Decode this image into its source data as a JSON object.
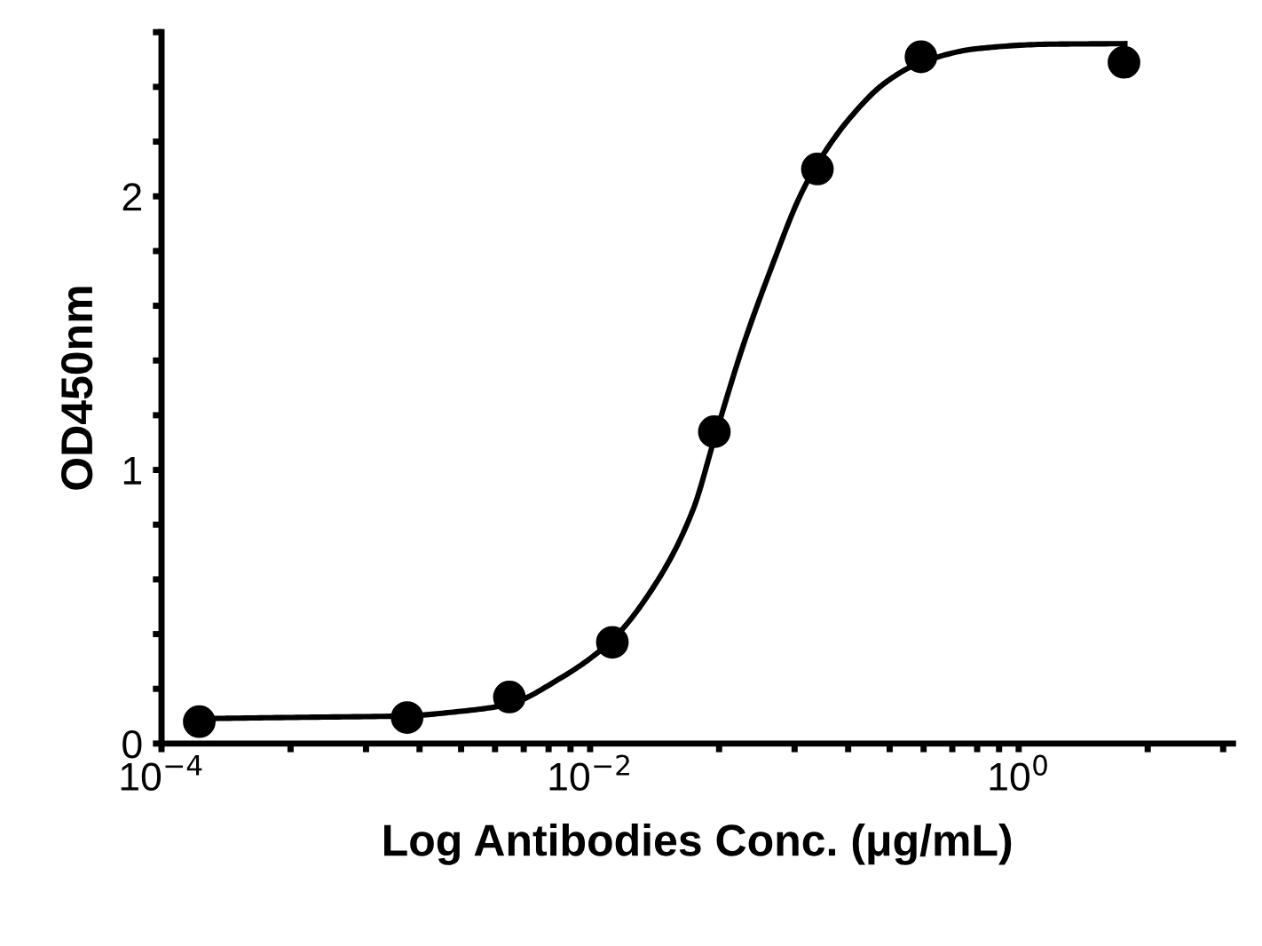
{
  "chart_data": {
    "type": "line",
    "xlabel": "Log Antibodies Conc. (μg/mL)",
    "ylabel": "OD450nm",
    "log": "x",
    "xlim": [
      0.0001,
      10
    ],
    "xticks": [
      {
        "value": 0.0001,
        "label": "10$^{−4}$"
      },
      {
        "value": 0.0004,
        "label": null
      },
      {
        "value": 0.0009,
        "label": null
      },
      {
        "value": 0.0016,
        "label": null
      },
      {
        "value": 0.0025,
        "label": null
      },
      {
        "value": 0.0036,
        "label": null
      },
      {
        "value": 0.0049,
        "label": null
      },
      {
        "value": 0.0064,
        "label": null
      },
      {
        "value": 0.0081,
        "label": null
      },
      {
        "value": 0.01,
        "label": "10$^{−2}$"
      },
      {
        "value": 0.04,
        "label": null
      },
      {
        "value": 0.09,
        "label": null
      },
      {
        "value": 0.16,
        "label": null
      },
      {
        "value": 0.25,
        "label": null
      },
      {
        "value": 0.36,
        "label": null
      },
      {
        "value": 0.49,
        "label": null
      },
      {
        "value": 0.64,
        "label": null
      },
      {
        "value": 0.81,
        "label": null
      },
      {
        "value": 1,
        "label": "10$^{0}$"
      },
      {
        "value": 4,
        "label": null
      },
      {
        "value": 9,
        "label": null
      }
    ],
    "ylim": [
      0,
      2.6
    ],
    "yticks": [
      0,
      {
        "value": 0.2,
        "label": null
      },
      {
        "value": 0.4,
        "label": null
      },
      {
        "value": 0.6,
        "label": null
      },
      {
        "value": 0.8,
        "label": null
      },
      1,
      {
        "value": 1.2,
        "label": null
      },
      {
        "value": 1.4,
        "label": null
      },
      {
        "value": 1.6,
        "label": null
      },
      {
        "value": 1.8,
        "label": null
      },
      2,
      {
        "value": 2.2,
        "label": null
      },
      {
        "value": 2.4,
        "label": null
      },
      {
        "value": 2.6,
        "label": null
      }
    ],
    "grid": false,
    "legend": false,
    "series": [
      {
        "color": "#000000",
        "marker": "none",
        "line_style": "solid",
        "x": [
          0.000148,
          0.000453,
          0.00137,
          0.00243,
          0.00415,
          0.0071,
          0.0126,
          0.0207,
          0.0303,
          0.0381,
          0.0518,
          0.0702,
          0.0953,
          0.1146,
          0.163,
          0.239,
          0.347,
          0.644,
          1.38,
          3.13
        ],
        "values": [
          0.091,
          0.096,
          0.101,
          0.117,
          0.143,
          0.234,
          0.377,
          0.597,
          0.857,
          1.117,
          1.455,
          1.74,
          2.0,
          2.117,
          2.286,
          2.416,
          2.488,
          2.54,
          2.556,
          2.558
        ]
      },
      {
        "type": "scatter",
        "color": "#000000",
        "marker": "circle",
        "x": [
          0.00015,
          0.0014,
          0.0042,
          0.0127,
          0.038,
          0.115,
          0.35,
          3.1
        ],
        "values": [
          0.08,
          0.095,
          0.17,
          0.37,
          1.14,
          2.1,
          2.51,
          2.49
        ]
      }
    ]
  }
}
